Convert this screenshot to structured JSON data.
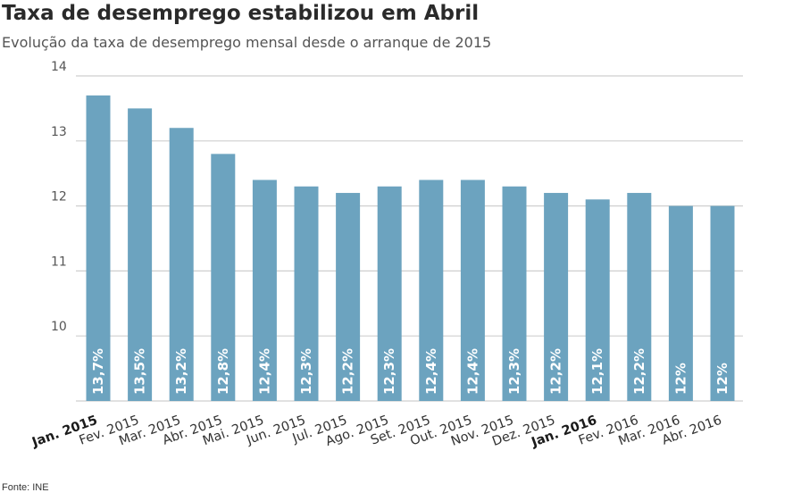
{
  "chart_data": {
    "type": "bar",
    "title": "Taxa de desemprego estabilizou em Abril",
    "subtitle": "Evolução da taxa de desemprego mensal desde o arranque de 2015",
    "categories": [
      "Jan. 2015",
      "Fev. 2015",
      "Mar. 2015",
      "Abr. 2015",
      "Mai. 2015",
      "Jun. 2015",
      "Jul. 2015",
      "Ago. 2015",
      "Set. 2015",
      "Out. 2015",
      "Nov. 2015",
      "Dez. 2015",
      "Jan. 2016",
      "Fev. 2016",
      "Mar. 2016",
      "Abr. 2016"
    ],
    "bold_categories": [
      "Jan. 2015",
      "Jan. 2016"
    ],
    "values": [
      13.7,
      13.5,
      13.2,
      12.8,
      12.4,
      12.3,
      12.2,
      12.3,
      12.4,
      12.4,
      12.3,
      12.2,
      12.1,
      12.2,
      12.0,
      12.0
    ],
    "data_labels": [
      "13,7%",
      "13,5%",
      "13,2%",
      "12,8%",
      "12,4%",
      "12,3%",
      "12,2%",
      "12,3%",
      "12,4%",
      "12,4%",
      "12,3%",
      "12,2%",
      "12,1%",
      "12,2%",
      "12%",
      "12%"
    ],
    "yticks": [
      10,
      11,
      12,
      13,
      14
    ],
    "ylim": [
      9,
      14
    ],
    "grid": true,
    "xlabel": "",
    "ylabel": "",
    "bar_color": "#6ca3bf",
    "grid_color": "#cfcfcf",
    "source": "Fonte: INE"
  }
}
